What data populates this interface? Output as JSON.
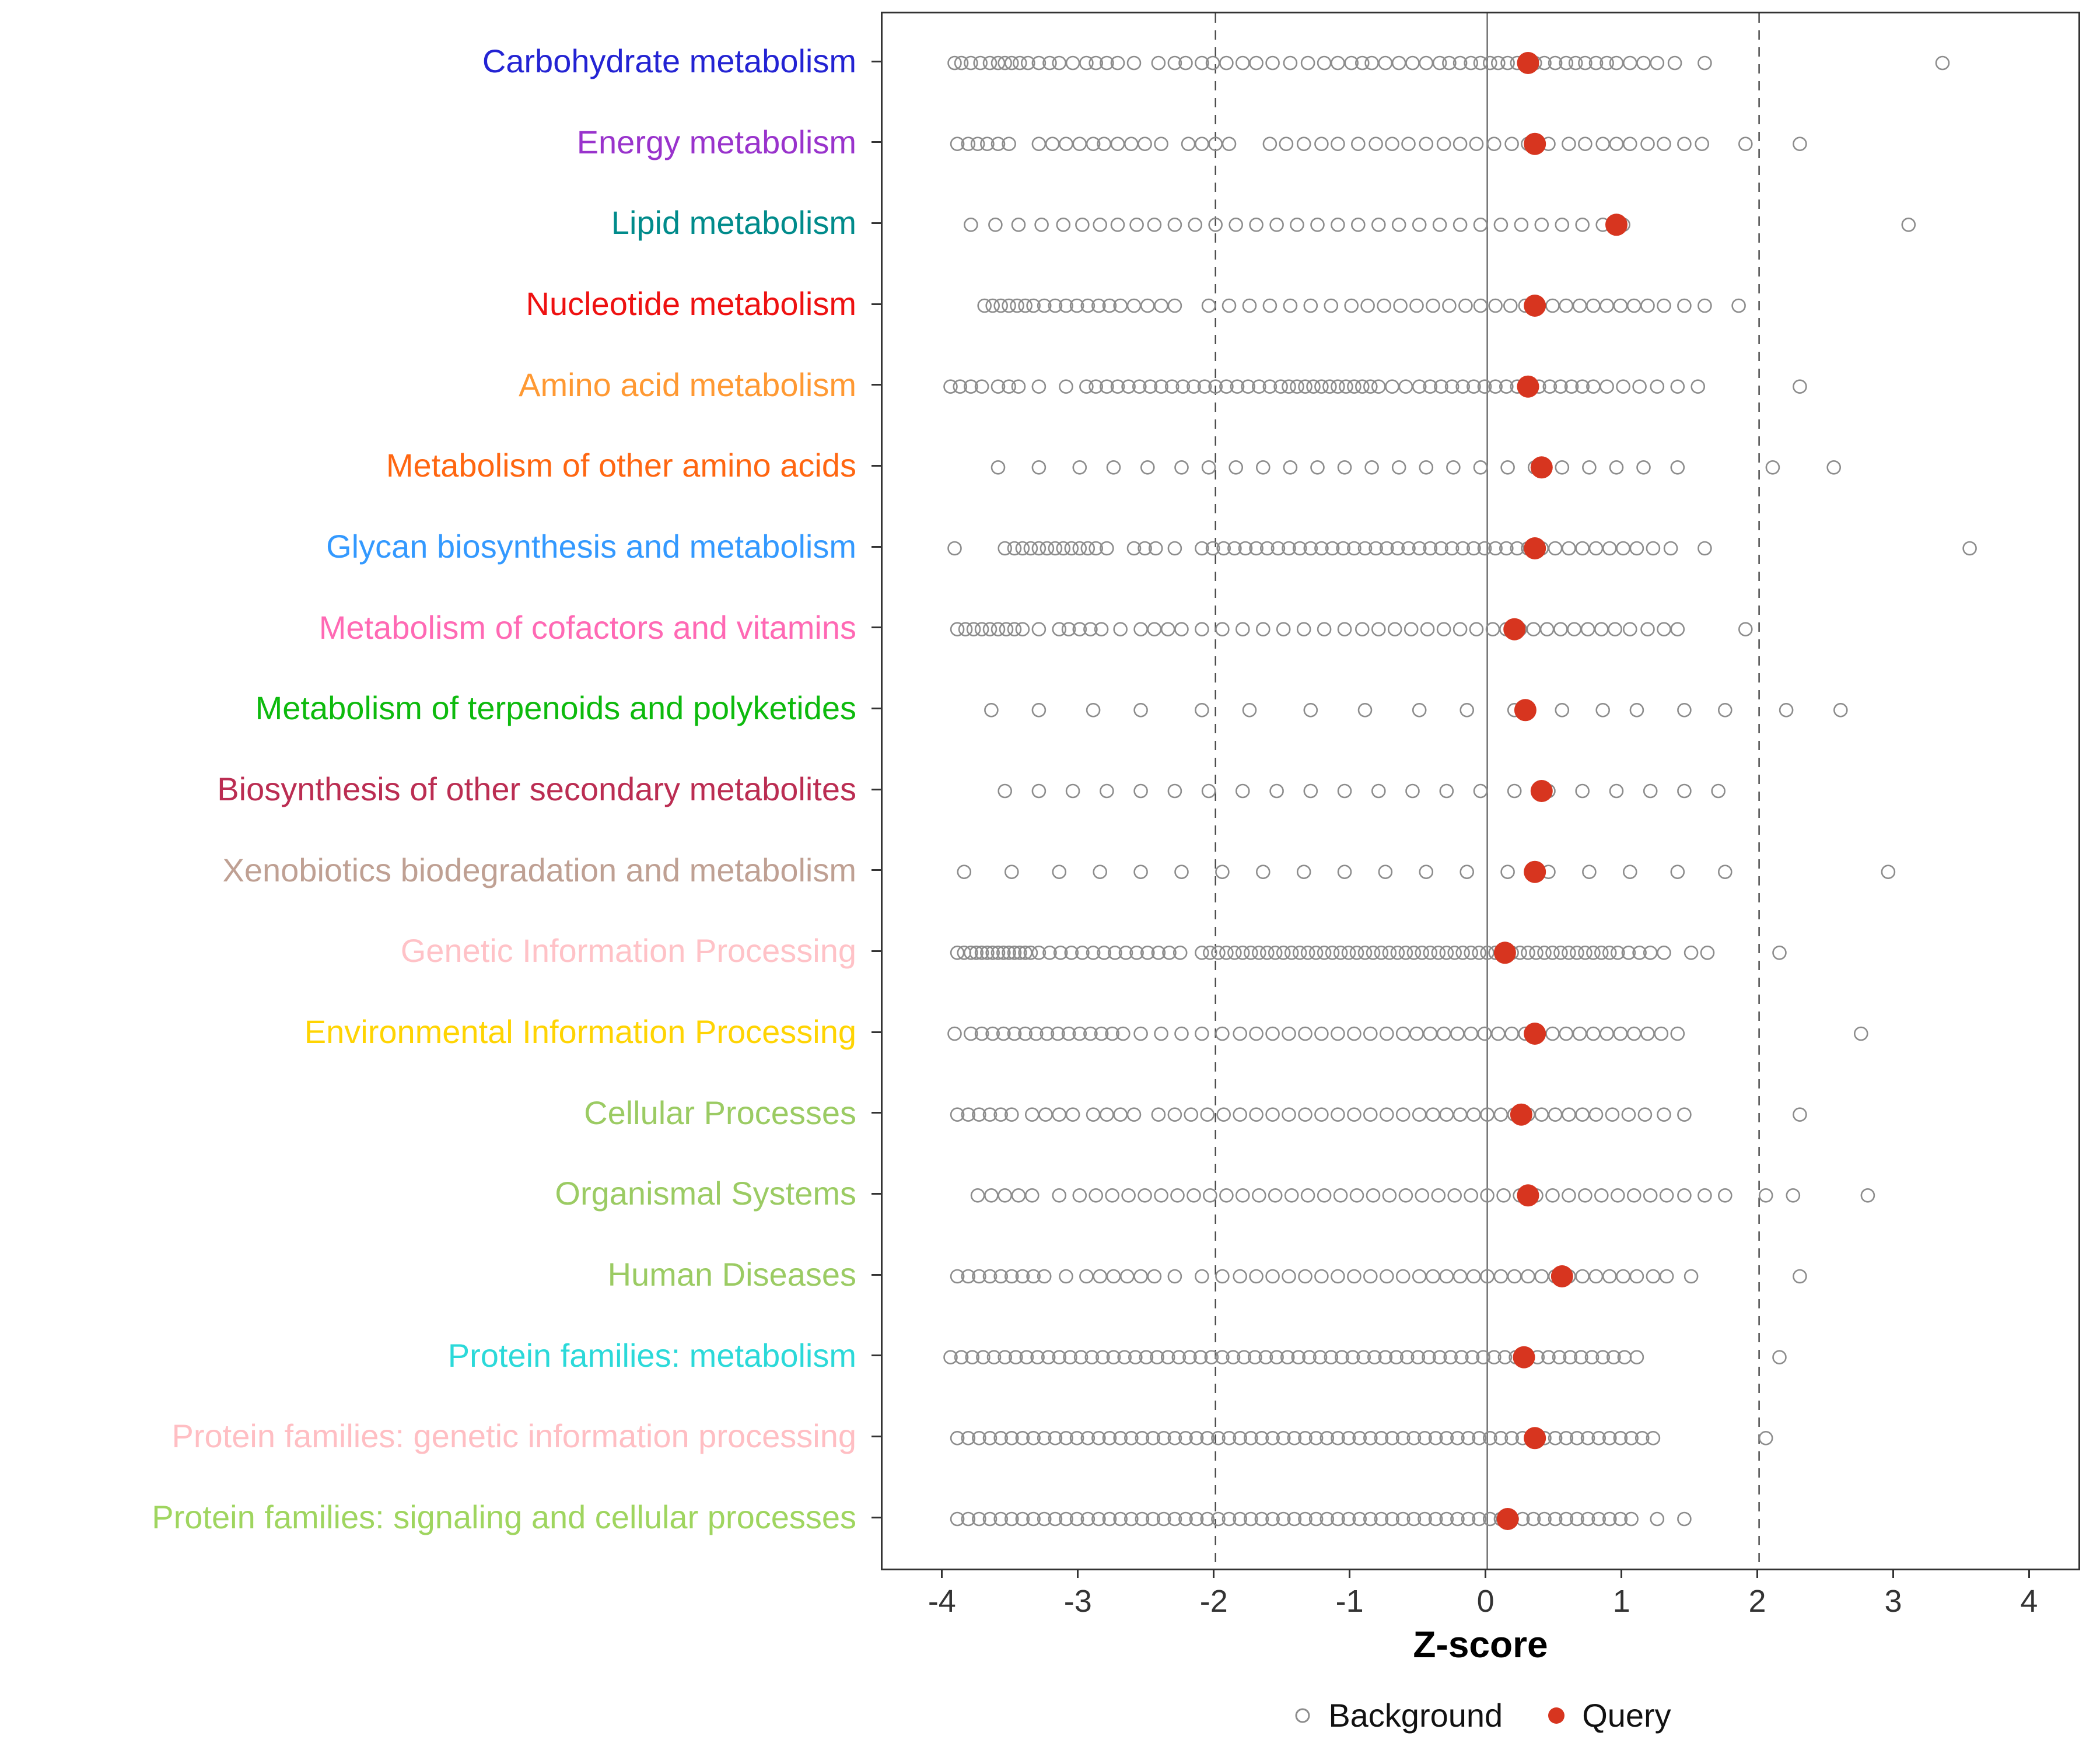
{
  "axis": {
    "label": "Z-score",
    "ticks": [
      -4,
      -3,
      -2,
      -1,
      0,
      1,
      2,
      3,
      4
    ],
    "ref_lines_dashed": [
      -2,
      2
    ],
    "ref_line_solid": 0
  },
  "legend": {
    "background_label": "Background",
    "query_label": "Query",
    "background_color": "#8C8C8C",
    "query_color": "#D7351F"
  },
  "chart_data": {
    "type": "scatter",
    "title": "",
    "xlabel": "Z-score",
    "xlim": [
      -4.45,
      4.35
    ],
    "grid": false,
    "legend_position": "bottom",
    "series_legend": [
      "Background",
      "Query"
    ],
    "rows": [
      {
        "label": "Carbohydrate metabolism",
        "color": "#2323D3",
        "query": 0.3,
        "background": [
          -3.92,
          -3.87,
          -3.8,
          -3.73,
          -3.66,
          -3.6,
          -3.55,
          -3.5,
          -3.44,
          -3.38,
          -3.3,
          -3.22,
          -3.15,
          -3.05,
          -2.95,
          -2.88,
          -2.8,
          -2.72,
          -2.6,
          -2.42,
          -2.3,
          -2.22,
          -2.1,
          -2.02,
          -1.92,
          -1.8,
          -1.7,
          -1.58,
          -1.45,
          -1.32,
          -1.2,
          -1.1,
          -1.0,
          -0.92,
          -0.85,
          -0.75,
          -0.65,
          -0.55,
          -0.45,
          -0.35,
          -0.28,
          -0.2,
          -0.12,
          -0.05,
          0.02,
          0.08,
          0.15,
          0.22,
          0.28,
          0.35,
          0.42,
          0.5,
          0.58,
          0.65,
          0.72,
          0.8,
          0.88,
          0.95,
          1.05,
          1.15,
          1.25,
          1.38,
          1.6,
          3.35
        ]
      },
      {
        "label": "Energy metabolism",
        "color": "#9933CC",
        "query": 0.35,
        "background": [
          -3.9,
          -3.82,
          -3.75,
          -3.68,
          -3.6,
          -3.52,
          -3.3,
          -3.2,
          -3.1,
          -3.0,
          -2.9,
          -2.82,
          -2.72,
          -2.62,
          -2.52,
          -2.4,
          -2.2,
          -2.1,
          -2.0,
          -1.9,
          -1.6,
          -1.48,
          -1.35,
          -1.22,
          -1.1,
          -0.95,
          -0.82,
          -0.7,
          -0.58,
          -0.45,
          -0.32,
          -0.2,
          -0.08,
          0.05,
          0.18,
          0.3,
          0.45,
          0.6,
          0.72,
          0.85,
          0.95,
          1.05,
          1.18,
          1.3,
          1.45,
          1.58,
          1.9,
          2.3
        ]
      },
      {
        "label": "Lipid metabolism",
        "color": "#008B8B",
        "query": 0.95,
        "background": [
          -3.8,
          -3.62,
          -3.45,
          -3.28,
          -3.12,
          -2.98,
          -2.85,
          -2.72,
          -2.58,
          -2.45,
          -2.3,
          -2.15,
          -2.0,
          -1.85,
          -1.7,
          -1.55,
          -1.4,
          -1.25,
          -1.1,
          -0.95,
          -0.8,
          -0.65,
          -0.5,
          -0.35,
          -0.2,
          -0.05,
          0.1,
          0.25,
          0.4,
          0.55,
          0.7,
          0.85,
          1.0,
          3.1
        ]
      },
      {
        "label": "Nucleotide metabolism",
        "color": "#EE1111",
        "query": 0.35,
        "background": [
          -3.7,
          -3.64,
          -3.58,
          -3.52,
          -3.46,
          -3.4,
          -3.34,
          -3.26,
          -3.18,
          -3.1,
          -3.02,
          -2.94,
          -2.86,
          -2.78,
          -2.7,
          -2.6,
          -2.5,
          -2.4,
          -2.3,
          -2.05,
          -1.9,
          -1.75,
          -1.6,
          -1.45,
          -1.3,
          -1.15,
          -1.0,
          -0.88,
          -0.76,
          -0.64,
          -0.52,
          -0.4,
          -0.28,
          -0.16,
          -0.05,
          0.06,
          0.17,
          0.28,
          0.38,
          0.48,
          0.58,
          0.68,
          0.78,
          0.88,
          0.98,
          1.08,
          1.18,
          1.3,
          1.45,
          1.6,
          1.85
        ]
      },
      {
        "label": "Amino acid metabolism",
        "color": "#FF9933",
        "query": 0.3,
        "background": [
          -3.95,
          -3.88,
          -3.8,
          -3.72,
          -3.6,
          -3.52,
          -3.45,
          -3.3,
          -3.1,
          -2.95,
          -2.88,
          -2.8,
          -2.72,
          -2.64,
          -2.56,
          -2.48,
          -2.4,
          -2.32,
          -2.24,
          -2.16,
          -2.08,
          -2.0,
          -1.92,
          -1.84,
          -1.76,
          -1.68,
          -1.6,
          -1.52,
          -1.46,
          -1.4,
          -1.34,
          -1.28,
          -1.22,
          -1.16,
          -1.1,
          -1.04,
          -0.98,
          -0.92,
          -0.86,
          -0.8,
          -0.7,
          -0.6,
          -0.5,
          -0.42,
          -0.34,
          -0.26,
          -0.18,
          -0.1,
          -0.02,
          0.06,
          0.14,
          0.22,
          0.3,
          0.38,
          0.46,
          0.54,
          0.62,
          0.7,
          0.78,
          0.88,
          1.0,
          1.12,
          1.25,
          1.4,
          1.55,
          2.3
        ]
      },
      {
        "label": "Metabolism of other amino acids",
        "color": "#FF6611",
        "query": 0.4,
        "background": [
          -3.6,
          -3.3,
          -3.0,
          -2.75,
          -2.5,
          -2.25,
          -2.05,
          -1.85,
          -1.65,
          -1.45,
          -1.25,
          -1.05,
          -0.85,
          -0.65,
          -0.45,
          -0.25,
          -0.05,
          0.15,
          0.35,
          0.55,
          0.75,
          0.95,
          1.15,
          1.4,
          2.1,
          2.55
        ]
      },
      {
        "label": "Glycan biosynthesis and metabolism",
        "color": "#3399FF",
        "query": 0.35,
        "background": [
          -3.92,
          -3.55,
          -3.48,
          -3.42,
          -3.36,
          -3.3,
          -3.24,
          -3.18,
          -3.12,
          -3.06,
          -3.0,
          -2.94,
          -2.88,
          -2.8,
          -2.6,
          -2.52,
          -2.44,
          -2.3,
          -2.1,
          -2.02,
          -1.94,
          -1.86,
          -1.78,
          -1.7,
          -1.62,
          -1.54,
          -1.46,
          -1.38,
          -1.3,
          -1.22,
          -1.14,
          -1.06,
          -0.98,
          -0.9,
          -0.82,
          -0.74,
          -0.66,
          -0.58,
          -0.5,
          -0.42,
          -0.34,
          -0.26,
          -0.18,
          -0.1,
          -0.02,
          0.06,
          0.14,
          0.22,
          0.3,
          0.4,
          0.5,
          0.6,
          0.7,
          0.8,
          0.9,
          1.0,
          1.1,
          1.22,
          1.35,
          1.6,
          3.55
        ]
      },
      {
        "label": "Metabolism of cofactors and vitamins",
        "color": "#FF69B4",
        "query": 0.2,
        "background": [
          -3.9,
          -3.84,
          -3.78,
          -3.72,
          -3.66,
          -3.6,
          -3.54,
          -3.48,
          -3.42,
          -3.3,
          -3.15,
          -3.08,
          -3.0,
          -2.92,
          -2.84,
          -2.7,
          -2.55,
          -2.45,
          -2.35,
          -2.25,
          -2.1,
          -1.95,
          -1.8,
          -1.65,
          -1.5,
          -1.35,
          -1.2,
          -1.05,
          -0.92,
          -0.8,
          -0.68,
          -0.56,
          -0.44,
          -0.32,
          -0.2,
          -0.08,
          0.04,
          0.14,
          0.24,
          0.34,
          0.44,
          0.54,
          0.64,
          0.74,
          0.84,
          0.94,
          1.05,
          1.18,
          1.3,
          1.4,
          1.9
        ]
      },
      {
        "label": "Metabolism of terpenoids and polyketides",
        "color": "#0DBA0D",
        "query": 0.28,
        "background": [
          -3.65,
          -3.3,
          -2.9,
          -2.55,
          -2.1,
          -1.75,
          -1.3,
          -0.9,
          -0.5,
          -0.15,
          0.2,
          0.55,
          0.85,
          1.1,
          1.45,
          1.75,
          2.2,
          2.6
        ]
      },
      {
        "label": "Biosynthesis of other secondary metabolites",
        "color": "#BB2D52",
        "query": 0.4,
        "background": [
          -3.55,
          -3.3,
          -3.05,
          -2.8,
          -2.55,
          -2.3,
          -2.05,
          -1.8,
          -1.55,
          -1.3,
          -1.05,
          -0.8,
          -0.55,
          -0.3,
          -0.05,
          0.2,
          0.45,
          0.7,
          0.95,
          1.2,
          1.45,
          1.7
        ]
      },
      {
        "label": "Xenobiotics biodegradation and metabolism",
        "color": "#BFA093",
        "query": 0.35,
        "background": [
          -3.85,
          -3.5,
          -3.15,
          -2.85,
          -2.55,
          -2.25,
          -1.95,
          -1.65,
          -1.35,
          -1.05,
          -0.75,
          -0.45,
          -0.15,
          0.15,
          0.45,
          0.75,
          1.05,
          1.4,
          1.75,
          2.95
        ]
      },
      {
        "label": "Genetic Information Processing",
        "color": "#FFC2C7",
        "query": 0.13,
        "background": [
          -3.9,
          -3.85,
          -3.8,
          -3.76,
          -3.72,
          -3.68,
          -3.64,
          -3.6,
          -3.56,
          -3.52,
          -3.48,
          -3.44,
          -3.4,
          -3.36,
          -3.3,
          -3.22,
          -3.14,
          -3.06,
          -2.98,
          -2.9,
          -2.82,
          -2.74,
          -2.66,
          -2.58,
          -2.5,
          -2.42,
          -2.34,
          -2.26,
          -2.1,
          -2.04,
          -1.98,
          -1.92,
          -1.86,
          -1.8,
          -1.74,
          -1.68,
          -1.62,
          -1.56,
          -1.5,
          -1.44,
          -1.38,
          -1.32,
          -1.26,
          -1.2,
          -1.14,
          -1.08,
          -1.02,
          -0.96,
          -0.9,
          -0.84,
          -0.78,
          -0.72,
          -0.66,
          -0.6,
          -0.54,
          -0.48,
          -0.42,
          -0.36,
          -0.3,
          -0.24,
          -0.18,
          -0.12,
          -0.06,
          0.0,
          0.06,
          0.12,
          0.18,
          0.24,
          0.3,
          0.36,
          0.42,
          0.48,
          0.54,
          0.6,
          0.66,
          0.72,
          0.78,
          0.84,
          0.9,
          0.96,
          1.04,
          1.12,
          1.2,
          1.3,
          1.5,
          1.62,
          2.15
        ]
      },
      {
        "label": "Environmental Information Processing",
        "color": "#FFD403",
        "query": 0.35,
        "background": [
          -3.92,
          -3.8,
          -3.72,
          -3.64,
          -3.56,
          -3.48,
          -3.4,
          -3.32,
          -3.24,
          -3.16,
          -3.08,
          -3.0,
          -2.92,
          -2.84,
          -2.76,
          -2.68,
          -2.55,
          -2.4,
          -2.25,
          -2.1,
          -1.95,
          -1.82,
          -1.7,
          -1.58,
          -1.46,
          -1.34,
          -1.22,
          -1.1,
          -0.98,
          -0.86,
          -0.74,
          -0.62,
          -0.52,
          -0.42,
          -0.32,
          -0.22,
          -0.12,
          -0.02,
          0.08,
          0.18,
          0.28,
          0.38,
          0.48,
          0.58,
          0.68,
          0.78,
          0.88,
          0.98,
          1.08,
          1.18,
          1.28,
          1.4,
          2.75
        ]
      },
      {
        "label": "Cellular Processes",
        "color": "#9BCB63",
        "query": 0.25,
        "background": [
          -3.9,
          -3.82,
          -3.74,
          -3.66,
          -3.58,
          -3.5,
          -3.35,
          -3.25,
          -3.15,
          -3.05,
          -2.9,
          -2.8,
          -2.7,
          -2.6,
          -2.42,
          -2.3,
          -2.18,
          -2.06,
          -1.94,
          -1.82,
          -1.7,
          -1.58,
          -1.46,
          -1.34,
          -1.22,
          -1.1,
          -0.98,
          -0.86,
          -0.74,
          -0.62,
          -0.5,
          -0.4,
          -0.3,
          -0.2,
          -0.1,
          0.0,
          0.1,
          0.2,
          0.3,
          0.4,
          0.5,
          0.6,
          0.7,
          0.8,
          0.92,
          1.04,
          1.16,
          1.3,
          1.45,
          2.3
        ]
      },
      {
        "label": "Organismal Systems",
        "color": "#9BCB63",
        "query": 0.3,
        "background": [
          -3.75,
          -3.65,
          -3.55,
          -3.45,
          -3.35,
          -3.15,
          -3.0,
          -2.88,
          -2.76,
          -2.64,
          -2.52,
          -2.4,
          -2.28,
          -2.16,
          -2.04,
          -1.92,
          -1.8,
          -1.68,
          -1.56,
          -1.44,
          -1.32,
          -1.2,
          -1.08,
          -0.96,
          -0.84,
          -0.72,
          -0.6,
          -0.48,
          -0.36,
          -0.24,
          -0.12,
          0.0,
          0.12,
          0.24,
          0.36,
          0.48,
          0.6,
          0.72,
          0.84,
          0.96,
          1.08,
          1.2,
          1.32,
          1.45,
          1.6,
          1.75,
          2.05,
          2.25,
          2.8
        ]
      },
      {
        "label": "Human Diseases",
        "color": "#9BCB63",
        "query": 0.55,
        "background": [
          -3.9,
          -3.82,
          -3.74,
          -3.66,
          -3.58,
          -3.5,
          -3.42,
          -3.34,
          -3.26,
          -3.1,
          -2.95,
          -2.85,
          -2.75,
          -2.65,
          -2.55,
          -2.45,
          -2.3,
          -2.1,
          -1.95,
          -1.82,
          -1.7,
          -1.58,
          -1.46,
          -1.34,
          -1.22,
          -1.1,
          -0.98,
          -0.86,
          -0.74,
          -0.62,
          -0.5,
          -0.4,
          -0.3,
          -0.2,
          -0.1,
          0.0,
          0.1,
          0.2,
          0.3,
          0.4,
          0.5,
          0.6,
          0.7,
          0.8,
          0.9,
          1.0,
          1.1,
          1.22,
          1.32,
          1.5,
          2.3
        ]
      },
      {
        "label": "Protein families: metabolism",
        "color": "#2BD9D9",
        "query": 0.27,
        "background": [
          -3.95,
          -3.87,
          -3.79,
          -3.71,
          -3.63,
          -3.55,
          -3.47,
          -3.39,
          -3.31,
          -3.23,
          -3.15,
          -3.07,
          -2.99,
          -2.91,
          -2.83,
          -2.75,
          -2.67,
          -2.59,
          -2.51,
          -2.43,
          -2.35,
          -2.27,
          -2.19,
          -2.11,
          -2.03,
          -1.95,
          -1.87,
          -1.79,
          -1.71,
          -1.63,
          -1.55,
          -1.47,
          -1.39,
          -1.31,
          -1.23,
          -1.15,
          -1.07,
          -0.99,
          -0.91,
          -0.83,
          -0.75,
          -0.67,
          -0.59,
          -0.51,
          -0.43,
          -0.35,
          -0.27,
          -0.19,
          -0.11,
          -0.03,
          0.05,
          0.13,
          0.21,
          0.29,
          0.37,
          0.45,
          0.53,
          0.61,
          0.69,
          0.77,
          0.85,
          0.93,
          1.01,
          1.1,
          2.15
        ]
      },
      {
        "label": "Protein families: genetic information processing",
        "color": "#FFBEC3",
        "query": 0.35,
        "background": [
          -3.9,
          -3.82,
          -3.74,
          -3.66,
          -3.58,
          -3.5,
          -3.42,
          -3.34,
          -3.26,
          -3.18,
          -3.1,
          -3.02,
          -2.94,
          -2.86,
          -2.78,
          -2.7,
          -2.62,
          -2.54,
          -2.46,
          -2.38,
          -2.3,
          -2.22,
          -2.14,
          -2.06,
          -1.98,
          -1.9,
          -1.82,
          -1.74,
          -1.66,
          -1.58,
          -1.5,
          -1.42,
          -1.34,
          -1.26,
          -1.18,
          -1.1,
          -1.02,
          -0.94,
          -0.86,
          -0.78,
          -0.7,
          -0.62,
          -0.54,
          -0.46,
          -0.38,
          -0.3,
          -0.22,
          -0.14,
          -0.06,
          0.02,
          0.1,
          0.18,
          0.26,
          0.34,
          0.42,
          0.5,
          0.58,
          0.66,
          0.74,
          0.82,
          0.9,
          0.98,
          1.06,
          1.14,
          1.22,
          2.05
        ]
      },
      {
        "label": "Protein families: signaling and cellular processes",
        "color": "#9FD55F",
        "query": 0.15,
        "background": [
          -3.9,
          -3.82,
          -3.74,
          -3.66,
          -3.58,
          -3.5,
          -3.42,
          -3.34,
          -3.26,
          -3.18,
          -3.1,
          -3.02,
          -2.94,
          -2.86,
          -2.78,
          -2.7,
          -2.62,
          -2.54,
          -2.46,
          -2.38,
          -2.3,
          -2.22,
          -2.14,
          -2.06,
          -1.98,
          -1.9,
          -1.82,
          -1.74,
          -1.66,
          -1.58,
          -1.5,
          -1.42,
          -1.34,
          -1.26,
          -1.18,
          -1.1,
          -1.02,
          -0.94,
          -0.86,
          -0.78,
          -0.7,
          -0.62,
          -0.54,
          -0.46,
          -0.38,
          -0.3,
          -0.22,
          -0.14,
          -0.06,
          0.02,
          0.1,
          0.18,
          0.26,
          0.34,
          0.42,
          0.5,
          0.58,
          0.66,
          0.74,
          0.82,
          0.9,
          0.98,
          1.06,
          1.25,
          1.45
        ]
      }
    ]
  }
}
